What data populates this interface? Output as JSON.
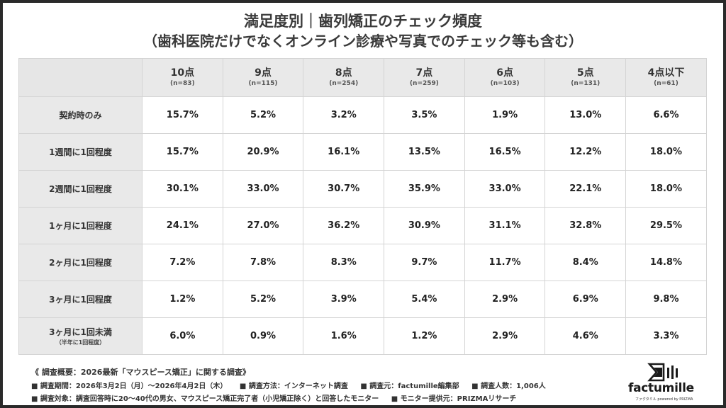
{
  "title_line1": "満足度別｜歯列矯正のチェック頻度",
  "title_line2": "（歯科医院だけでなくオンライン診療や写真でのチェック等も含む）",
  "chart_data": {
    "type": "table",
    "columns": [
      {
        "label": "10点",
        "n": "(n=83)"
      },
      {
        "label": "9点",
        "n": "(n=115)"
      },
      {
        "label": "8点",
        "n": "(n=254)"
      },
      {
        "label": "7点",
        "n": "(n=259)"
      },
      {
        "label": "6点",
        "n": "(n=103)"
      },
      {
        "label": "5点",
        "n": "(n=131)"
      },
      {
        "label": "4点以下",
        "n": "(n=61)"
      }
    ],
    "rows": [
      {
        "label": "契約時のみ",
        "sub": "",
        "values": [
          "15.7%",
          "5.2%",
          "3.2%",
          "3.5%",
          "1.9%",
          "13.0%",
          "6.6%"
        ]
      },
      {
        "label": "1週間に1回程度",
        "sub": "",
        "values": [
          "15.7%",
          "20.9%",
          "16.1%",
          "13.5%",
          "16.5%",
          "12.2%",
          "18.0%"
        ]
      },
      {
        "label": "2週間に1回程度",
        "sub": "",
        "values": [
          "30.1%",
          "33.0%",
          "30.7%",
          "35.9%",
          "33.0%",
          "22.1%",
          "18.0%"
        ]
      },
      {
        "label": "1ヶ月に1回程度",
        "sub": "",
        "values": [
          "24.1%",
          "27.0%",
          "36.2%",
          "30.9%",
          "31.1%",
          "32.8%",
          "29.5%"
        ]
      },
      {
        "label": "2ヶ月に1回程度",
        "sub": "",
        "values": [
          "7.2%",
          "7.8%",
          "8.3%",
          "9.7%",
          "11.7%",
          "8.4%",
          "14.8%"
        ]
      },
      {
        "label": "3ヶ月に1回程度",
        "sub": "",
        "values": [
          "1.2%",
          "5.2%",
          "3.9%",
          "5.4%",
          "2.9%",
          "6.9%",
          "9.8%"
        ]
      },
      {
        "label": "3ヶ月に1回未満",
        "sub": "（半年に1回程度）",
        "values": [
          "6.0%",
          "0.9%",
          "1.6%",
          "1.2%",
          "2.9%",
          "4.6%",
          "3.3%"
        ]
      }
    ]
  },
  "footer": {
    "heading": "《 調査概要：2026最新「マウスピース矯正」に関する調査》",
    "line1": [
      "■ 調査期間：2026年3月2日（月）〜2026年4月2日（木）",
      "■ 調査方法：インターネット調査",
      "■ 調査元：factumille編集部",
      "■ 調査人数：1,006人"
    ],
    "line2": [
      "■ 調査対象：調査回答時に20〜40代の男女、マウスピース矯正完了者（小児矯正除く）と回答したモニター",
      "■ モニター提供元：PRIZMAリサーチ"
    ]
  },
  "logo": {
    "word": "factumille",
    "sub": "ファクタミル powered by PRIZMA",
    "icon": "factumille-logo-icon"
  }
}
